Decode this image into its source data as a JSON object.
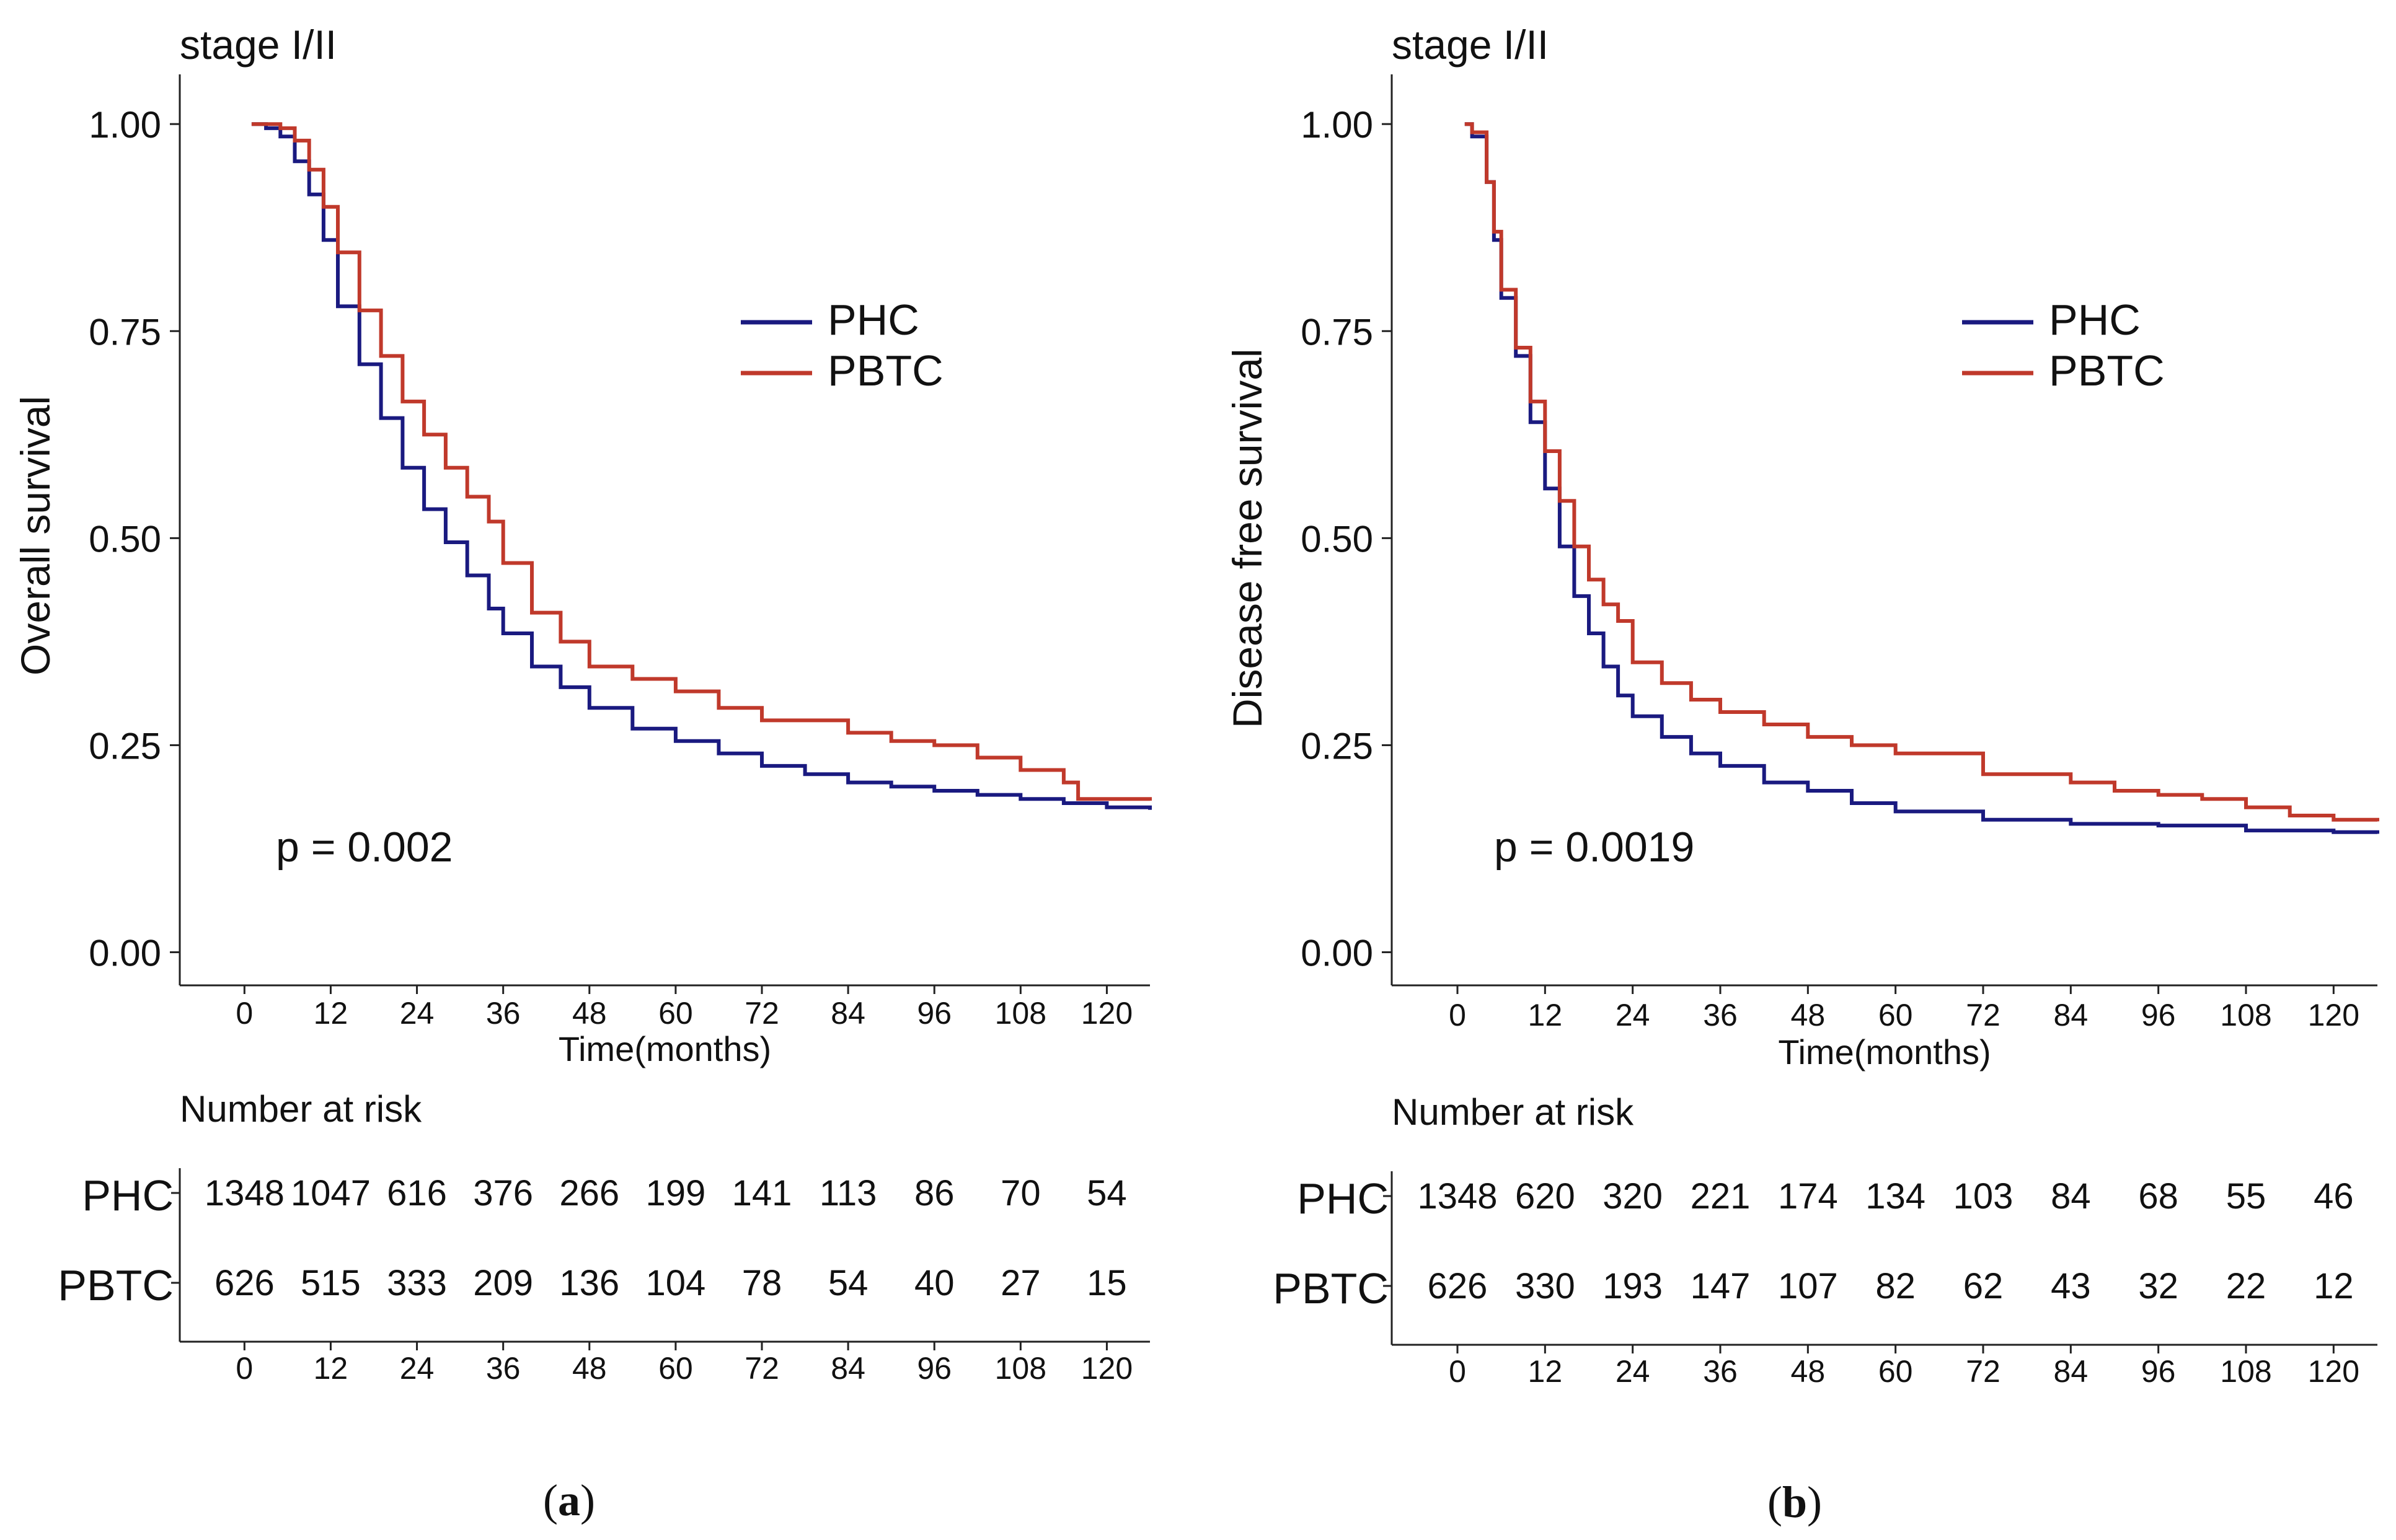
{
  "colors": {
    "phc": "#1a1a80",
    "pbtc": "#c0392b",
    "axis": "#222222"
  },
  "panels": [
    {
      "caption_letter": "a",
      "title": "stage I/II",
      "ylabel": "Overall survival",
      "xlabel": "Time(months)",
      "pvalue": "p = 0.002",
      "risk_title": "Number at risk",
      "chart_data": {
        "type": "line",
        "title": "stage I/II",
        "xlabel": "Time(months)",
        "ylabel": "Overall survival",
        "xlim": [
          -9,
          126
        ],
        "ylim": [
          -0.04,
          1.06
        ],
        "xticks": [
          "0",
          "12",
          "24",
          "36",
          "48",
          "60",
          "72",
          "84",
          "96",
          "108",
          "120"
        ],
        "yticks": [
          "0.00",
          "0.25",
          "0.50",
          "0.75",
          "1.00"
        ],
        "legend": "top-right",
        "series": [
          {
            "name": "PHC",
            "color": "#1a1a80",
            "x": [
              1,
              3,
              5,
              7,
              9,
              11,
              13,
              16,
              19,
              22,
              25,
              28,
              31,
              34,
              36,
              40,
              44,
              48,
              54,
              60,
              66,
              72,
              78,
              84,
              90,
              96,
              102,
              108,
              114,
              120,
              126
            ],
            "y": [
              1.0,
              0.995,
              0.985,
              0.955,
              0.915,
              0.86,
              0.78,
              0.71,
              0.645,
              0.585,
              0.535,
              0.495,
              0.455,
              0.415,
              0.385,
              0.345,
              0.32,
              0.295,
              0.27,
              0.255,
              0.24,
              0.225,
              0.215,
              0.205,
              0.2,
              0.195,
              0.19,
              0.185,
              0.18,
              0.175,
              0.172
            ]
          },
          {
            "name": "PBTC",
            "color": "#c0392b",
            "x": [
              1,
              3,
              5,
              7,
              9,
              11,
              13,
              16,
              19,
              22,
              25,
              28,
              31,
              34,
              36,
              40,
              44,
              48,
              54,
              60,
              66,
              72,
              78,
              84,
              90,
              96,
              102,
              108,
              114,
              116,
              120,
              126
            ],
            "y": [
              1.0,
              1.0,
              0.995,
              0.98,
              0.945,
              0.9,
              0.845,
              0.775,
              0.72,
              0.665,
              0.625,
              0.585,
              0.55,
              0.52,
              0.47,
              0.41,
              0.375,
              0.345,
              0.33,
              0.315,
              0.295,
              0.28,
              0.28,
              0.265,
              0.255,
              0.25,
              0.235,
              0.22,
              0.205,
              0.185,
              0.185,
              0.183
            ]
          }
        ],
        "annotations": [
          "p = 0.002"
        ]
      },
      "risk_table": {
        "times": [
          "0",
          "12",
          "24",
          "36",
          "48",
          "60",
          "72",
          "84",
          "96",
          "108",
          "120"
        ],
        "rows": [
          {
            "name": "PHC",
            "values": [
              "1348",
              "1047",
              "616",
              "376",
              "266",
              "199",
              "141",
              "113",
              "86",
              "70",
              "54"
            ]
          },
          {
            "name": "PBTC",
            "values": [
              "626",
              "515",
              "333",
              "209",
              "136",
              "104",
              "78",
              "54",
              "40",
              "27",
              "15"
            ]
          }
        ]
      }
    },
    {
      "caption_letter": "b",
      "title": "stage I/II",
      "ylabel": "Disease free survival",
      "xlabel": "Time(months)",
      "pvalue": "p = 0.0019",
      "risk_title": "Number at risk",
      "chart_data": {
        "type": "line",
        "title": "stage I/II",
        "xlabel": "Time(months)",
        "ylabel": "Disease free survival",
        "xlim": [
          -9,
          126
        ],
        "ylim": [
          -0.04,
          1.06
        ],
        "xticks": [
          "0",
          "12",
          "24",
          "36",
          "48",
          "60",
          "72",
          "84",
          "96",
          "108",
          "120"
        ],
        "yticks": [
          "0.00",
          "0.25",
          "0.50",
          "0.75",
          "1.00"
        ],
        "legend": "top-right",
        "series": [
          {
            "name": "PHC",
            "color": "#1a1a80",
            "x": [
              1,
              2,
              4,
              5,
              6,
              8,
              10,
              12,
              14,
              16,
              18,
              20,
              22,
              24,
              28,
              32,
              36,
              42,
              48,
              54,
              60,
              72,
              84,
              96,
              108,
              120,
              126
            ],
            "y": [
              1.0,
              0.985,
              0.93,
              0.86,
              0.79,
              0.72,
              0.64,
              0.56,
              0.49,
              0.43,
              0.385,
              0.345,
              0.31,
              0.285,
              0.26,
              0.24,
              0.225,
              0.205,
              0.195,
              0.18,
              0.17,
              0.16,
              0.155,
              0.153,
              0.147,
              0.145,
              0.143
            ]
          },
          {
            "name": "PBTC",
            "color": "#c0392b",
            "x": [
              1,
              2,
              4,
              5,
              6,
              8,
              10,
              12,
              14,
              16,
              18,
              20,
              22,
              24,
              28,
              32,
              36,
              42,
              48,
              54,
              60,
              72,
              84,
              90,
              96,
              102,
              108,
              114,
              120,
              126
            ],
            "y": [
              1.0,
              0.99,
              0.93,
              0.87,
              0.8,
              0.73,
              0.665,
              0.605,
              0.545,
              0.49,
              0.45,
              0.42,
              0.4,
              0.35,
              0.325,
              0.305,
              0.29,
              0.275,
              0.26,
              0.25,
              0.24,
              0.215,
              0.205,
              0.195,
              0.19,
              0.185,
              0.175,
              0.165,
              0.16,
              0.158
            ]
          }
        ],
        "annotations": [
          "p = 0.0019"
        ]
      },
      "risk_table": {
        "times": [
          "0",
          "12",
          "24",
          "36",
          "48",
          "60",
          "72",
          "84",
          "96",
          "108",
          "120"
        ],
        "rows": [
          {
            "name": "PHC",
            "values": [
              "1348",
              "620",
              "320",
              "221",
              "174",
              "134",
              "103",
              "84",
              "68",
              "55",
              "46"
            ]
          },
          {
            "name": "PBTC",
            "values": [
              "626",
              "330",
              "193",
              "147",
              "107",
              "82",
              "62",
              "43",
              "32",
              "22",
              "12"
            ]
          }
        ]
      }
    }
  ]
}
